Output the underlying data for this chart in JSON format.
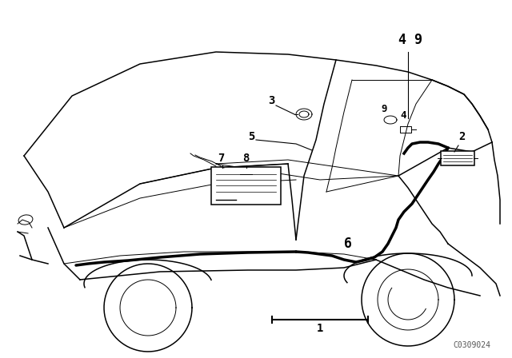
{
  "bg_color": "#ffffff",
  "line_color": "#000000",
  "catalog_number": "C0309024",
  "lw_thin": 0.7,
  "lw_med": 1.1,
  "lw_thick": 2.5,
  "figsize": [
    6.4,
    4.48
  ],
  "dpi": 100
}
